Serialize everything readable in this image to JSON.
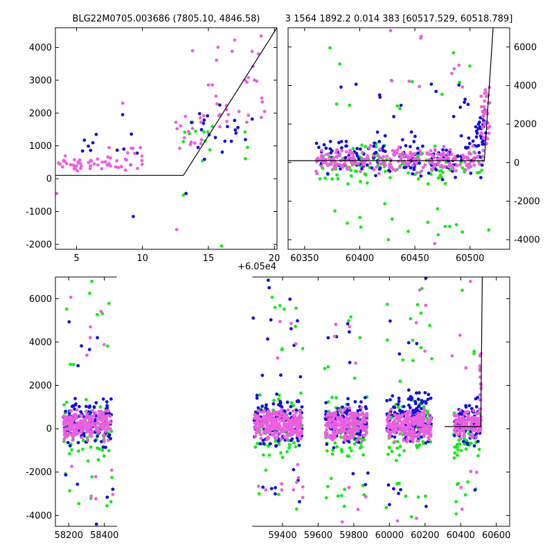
{
  "colors": {
    "blue": "#1010e0",
    "green": "#10ee10",
    "pink": "#ee5ee0",
    "model": "#000000"
  },
  "chart_data": [
    {
      "type": "scatter",
      "title": "BLG22M0705.003686 (7805.10, 4846.58)",
      "xlim": [
        3.4,
        20.2
      ],
      "ylim": [
        -2150,
        4600
      ],
      "x_ticks": [
        5,
        10,
        15,
        20
      ],
      "y_ticks": [
        -2000,
        -1000,
        0,
        1000,
        2000,
        3000,
        4000
      ],
      "x_offset_label": "+6.05e4",
      "grid": false,
      "model_line": {
        "x": [
          3.4,
          13.1,
          20.2
        ],
        "y": [
          100,
          100,
          4600
        ]
      },
      "clusters": [
        {
          "color": "pink",
          "x": [
            3.5,
            6.5
          ],
          "y": [
            200,
            700
          ],
          "n": 30
        },
        {
          "color": "pink",
          "x": [
            6.5,
            10
          ],
          "y": [
            0,
            1100
          ],
          "n": 28
        },
        {
          "color": "blue",
          "x": [
            5,
            10
          ],
          "y": [
            -400,
            1800
          ],
          "n": 10
        },
        {
          "color": "pink",
          "x": [
            12.5,
            15
          ],
          "y": [
            100,
            2200
          ],
          "n": 16
        },
        {
          "color": "pink",
          "x": [
            15,
            19.5
          ],
          "y": [
            800,
            4300
          ],
          "n": 30
        },
        {
          "color": "blue",
          "x": [
            13,
            18.5
          ],
          "y": [
            500,
            2500
          ],
          "n": 22
        },
        {
          "color": "green",
          "x": [
            13,
            18
          ],
          "y": [
            100,
            2000
          ],
          "n": 14
        }
      ],
      "extra_points": [
        {
          "color": "blue",
          "x": 9.3,
          "y": -1150
        },
        {
          "color": "pink",
          "x": 12.6,
          "y": -1550
        },
        {
          "color": "green",
          "x": 16.0,
          "y": -2050
        },
        {
          "color": "pink",
          "x": 13.8,
          "y": 3900
        },
        {
          "color": "green",
          "x": 13.1,
          "y": -500
        },
        {
          "color": "blue",
          "x": 13.3,
          "y": -450
        },
        {
          "color": "pink",
          "x": 19.0,
          "y": 4350
        },
        {
          "color": "pink",
          "x": 8.5,
          "y": 2300
        },
        {
          "color": "blue",
          "x": 8.5,
          "y": 1950
        },
        {
          "color": "blue",
          "x": 6.5,
          "y": 1350
        },
        {
          "color": "pink",
          "x": 3.5,
          "y": -450
        }
      ]
    },
    {
      "type": "scatter",
      "title": "3 1564 1892.2 0.014 383 [60517.529, 60518.789]",
      "xlim": [
        60335,
        60536
      ],
      "ylim": [
        -4500,
        7000
      ],
      "x_ticks": [
        60350,
        60400,
        60450,
        60500
      ],
      "y_ticks": [
        -4000,
        -2000,
        0,
        2000,
        4000,
        6000
      ],
      "grid": false,
      "model_line": {
        "x": [
          60335,
          60513,
          60521
        ],
        "y": [
          100,
          100,
          7000
        ]
      },
      "clusters": [
        {
          "color": "green",
          "x": [
            60360,
            60512
          ],
          "y": [
            -1200,
            1000
          ],
          "n": 110
        },
        {
          "color": "blue",
          "x": [
            60360,
            60512
          ],
          "y": [
            -900,
            1600
          ],
          "n": 150
        },
        {
          "color": "pink",
          "x": [
            60360,
            60512
          ],
          "y": [
            -600,
            900
          ],
          "n": 230
        },
        {
          "color": "blue",
          "x": [
            60505,
            60515
          ],
          "y": [
            300,
            3000
          ],
          "n": 30
        },
        {
          "color": "pink",
          "x": [
            60510,
            60518
          ],
          "y": [
            400,
            4300
          ],
          "n": 40
        },
        {
          "color": "green",
          "x": [
            60370,
            60505
          ],
          "y": [
            -4000,
            -1800
          ],
          "n": 14
        },
        {
          "color": "blue",
          "x": [
            60370,
            60500
          ],
          "y": [
            2000,
            4600
          ],
          "n": 14
        },
        {
          "color": "green",
          "x": [
            60370,
            60500
          ],
          "y": [
            2000,
            5900
          ],
          "n": 10
        },
        {
          "color": "pink",
          "x": [
            60420,
            60500
          ],
          "y": [
            2000,
            6800
          ],
          "n": 8
        }
      ],
      "extra_points": [
        {
          "color": "green",
          "x": 60373,
          "y": 5950
        },
        {
          "color": "pink",
          "x": 60428,
          "y": 6850
        },
        {
          "color": "green",
          "x": 60485,
          "y": 5700
        },
        {
          "color": "pink",
          "x": 60490,
          "y": 5050
        },
        {
          "color": "pink",
          "x": 60468,
          "y": -4200
        },
        {
          "color": "green",
          "x": 60426,
          "y": -4000
        },
        {
          "color": "green",
          "x": 60517,
          "y": -3500
        }
      ]
    },
    {
      "type": "scatter",
      "title": "",
      "xlim": [
        58125,
        60675
      ],
      "ylim": [
        -4500,
        7000
      ],
      "x_ticks": [
        58200,
        58400,
        59400,
        59600,
        59800,
        60000,
        60200,
        60400,
        60600
      ],
      "y_ticks": [
        -4000,
        -2000,
        0,
        2000,
        4000,
        6000
      ],
      "grid": false,
      "axis_break": {
        "left_end": 58470,
        "right_start": 59230
      },
      "model_line": {
        "x": [
          60310,
          60513,
          60521
        ],
        "y": [
          100,
          100,
          7000
        ]
      },
      "seasons": [
        58150,
        58450,
        59232,
        59518,
        59630,
        59880,
        59978,
        60240,
        60350,
        60515
      ],
      "clusters": [
        {
          "color": "green",
          "x": [
            58170,
            58440
          ],
          "y": [
            -1500,
            1500
          ],
          "n": 70
        },
        {
          "color": "blue",
          "x": [
            58170,
            58440
          ],
          "y": [
            -900,
            1600
          ],
          "n": 110
        },
        {
          "color": "pink",
          "x": [
            58170,
            58440
          ],
          "y": [
            -600,
            900
          ],
          "n": 220
        },
        {
          "color": "green",
          "x": [
            59240,
            59510
          ],
          "y": [
            -1500,
            1800
          ],
          "n": 80
        },
        {
          "color": "blue",
          "x": [
            59240,
            59510
          ],
          "y": [
            -900,
            1700
          ],
          "n": 110
        },
        {
          "color": "pink",
          "x": [
            59240,
            59510
          ],
          "y": [
            -500,
            900
          ],
          "n": 260
        },
        {
          "color": "green",
          "x": [
            59640,
            59875
          ],
          "y": [
            -1600,
            1600
          ],
          "n": 80
        },
        {
          "color": "blue",
          "x": [
            59640,
            59875
          ],
          "y": [
            -900,
            1500
          ],
          "n": 110
        },
        {
          "color": "pink",
          "x": [
            59640,
            59875
          ],
          "y": [
            -600,
            1000
          ],
          "n": 220
        },
        {
          "color": "green",
          "x": [
            59985,
            60235
          ],
          "y": [
            -1600,
            1600
          ],
          "n": 80
        },
        {
          "color": "blue",
          "x": [
            59985,
            60235
          ],
          "y": [
            -900,
            1800
          ],
          "n": 120
        },
        {
          "color": "pink",
          "x": [
            59985,
            60235
          ],
          "y": [
            -600,
            900
          ],
          "n": 230
        },
        {
          "color": "green",
          "x": [
            60360,
            60510
          ],
          "y": [
            -1500,
            1000
          ],
          "n": 50
        },
        {
          "color": "blue",
          "x": [
            60360,
            60512
          ],
          "y": [
            -800,
            1600
          ],
          "n": 70
        },
        {
          "color": "pink",
          "x": [
            60360,
            60515
          ],
          "y": [
            -500,
            900
          ],
          "n": 120
        },
        {
          "color": "pink",
          "x": [
            60505,
            60518
          ],
          "y": [
            400,
            4000
          ],
          "n": 20
        },
        {
          "color": "green",
          "x": [
            58180,
            60500
          ],
          "y": [
            -4200,
            -1500
          ],
          "n": 60
        },
        {
          "color": "blue",
          "x": [
            58180,
            60500
          ],
          "y": [
            -4200,
            -1500
          ],
          "n": 40
        },
        {
          "color": "pink",
          "x": [
            58180,
            60500
          ],
          "y": [
            -4200,
            -1500
          ],
          "n": 45
        },
        {
          "color": "green",
          "x": [
            58180,
            60500
          ],
          "y": [
            1800,
            6900
          ],
          "n": 60
        },
        {
          "color": "blue",
          "x": [
            58180,
            60500
          ],
          "y": [
            1800,
            6900
          ],
          "n": 55
        },
        {
          "color": "pink",
          "x": [
            58180,
            60500
          ],
          "y": [
            1800,
            6900
          ],
          "n": 45
        }
      ],
      "extra_points": [
        {
          "color": "blue",
          "x": 59320,
          "y": 6850
        },
        {
          "color": "green",
          "x": 58330,
          "y": 6800
        },
        {
          "color": "pink",
          "x": 60170,
          "y": 6400
        },
        {
          "color": "blue",
          "x": 60205,
          "y": 6950
        },
        {
          "color": "pink",
          "x": 60455,
          "y": 6800
        },
        {
          "color": "blue",
          "x": 58355,
          "y": -4400
        },
        {
          "color": "pink",
          "x": 59735,
          "y": -4300
        },
        {
          "color": "pink",
          "x": 60045,
          "y": -4250
        }
      ]
    }
  ]
}
